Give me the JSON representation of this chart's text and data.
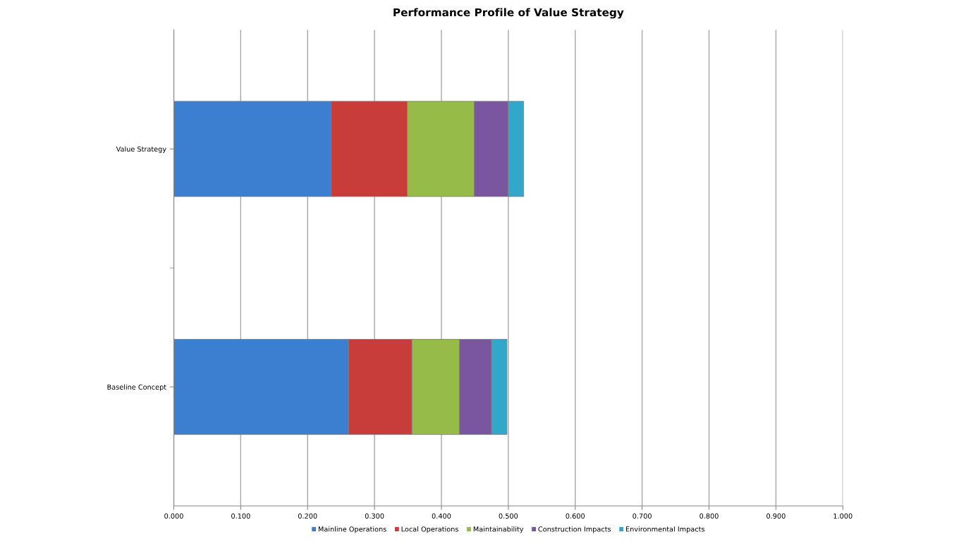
{
  "chart_data": {
    "type": "bar",
    "orientation": "horizontal",
    "stacked": true,
    "title": "Performance Profile of Value Strategy",
    "categories": [
      "Value Strategy",
      "Baseline Concept"
    ],
    "series": [
      {
        "name": "Mainline Operations",
        "color": "#3c7fd0",
        "values": [
          0.235,
          0.261
        ]
      },
      {
        "name": "Local Operations",
        "color": "#c83c3a",
        "values": [
          0.114,
          0.095
        ]
      },
      {
        "name": "Maintainability",
        "color": "#97bb48",
        "values": [
          0.1,
          0.071
        ]
      },
      {
        "name": "Construction Impacts",
        "color": "#7a55a0",
        "values": [
          0.051,
          0.048
        ]
      },
      {
        "name": "Environmental Impacts",
        "color": "#31a8c9",
        "values": [
          0.023,
          0.023
        ]
      }
    ],
    "xlim": [
      0,
      1
    ],
    "xticks": [
      {
        "value": 0,
        "label": "0.000"
      },
      {
        "value": 0.1,
        "label": "0.100"
      },
      {
        "value": 0.2,
        "label": "0.200"
      },
      {
        "value": 0.3,
        "label": "0.300"
      },
      {
        "value": 0.4,
        "label": "0.400"
      },
      {
        "value": 0.5,
        "label": "0.500"
      },
      {
        "value": 0.6,
        "label": "0.600"
      },
      {
        "value": 0.7,
        "label": "0.700"
      },
      {
        "value": 0.8,
        "label": "0.800"
      },
      {
        "value": 0.9,
        "label": "0.900"
      },
      {
        "value": 1,
        "label": "1.000"
      }
    ],
    "grid": "x",
    "legend": "bottom"
  }
}
